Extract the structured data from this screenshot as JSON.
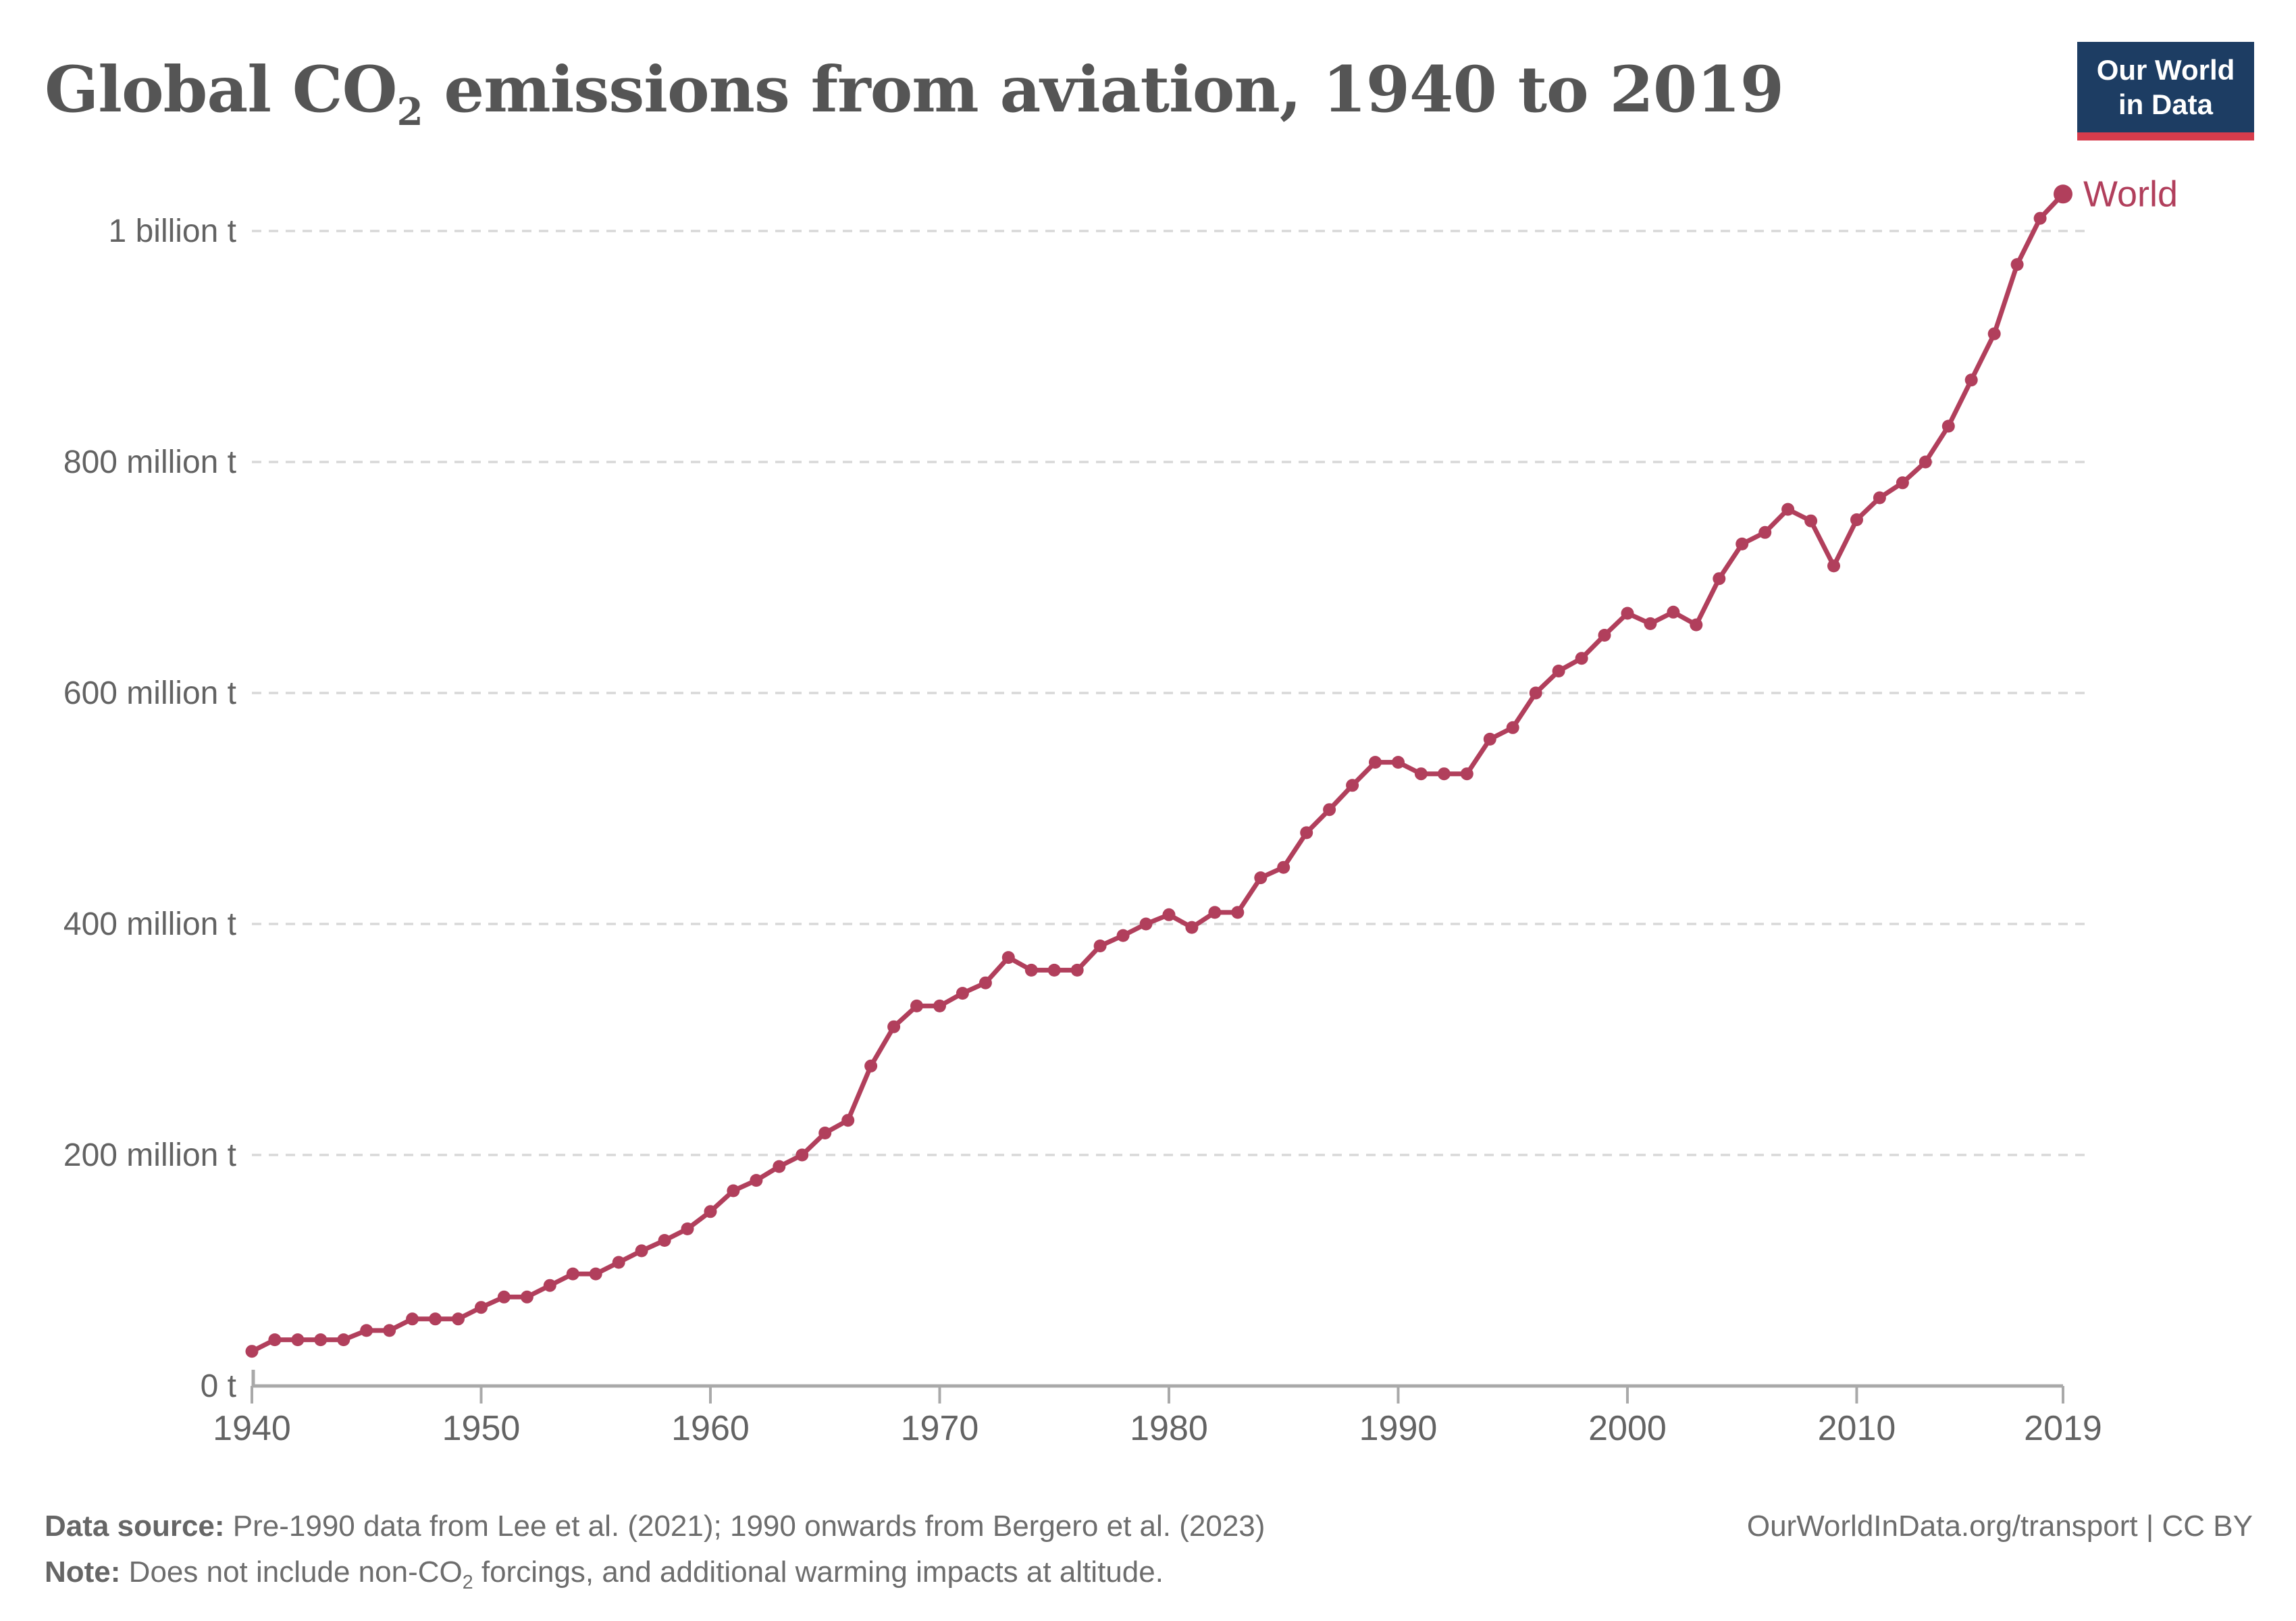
{
  "header": {
    "title_p1": "Global CO",
    "title_sub": "2",
    "title_p2": " emissions from aviation, 1940 to 2019",
    "logo_line1": "Our World",
    "logo_line2": "in Data",
    "logo_colors": {
      "background": "#1d3d63",
      "underline": "#d73c4c",
      "text": "#ffffff"
    }
  },
  "chart_data": {
    "type": "line",
    "title": "Global CO2 emissions from aviation, 1940 to 2019",
    "xlabel": "",
    "ylabel": "",
    "unit": "tonnes CO2",
    "grid": "horizontal-dashed",
    "legend_position": "end-of-line-label",
    "x_range": [
      1940,
      2019
    ],
    "y_range": [
      0,
      1050000000
    ],
    "yticks": [
      {
        "value": 0,
        "label": "0 t"
      },
      {
        "value": 200,
        "label": "200 million t"
      },
      {
        "value": 400,
        "label": "400 million t"
      },
      {
        "value": 600,
        "label": "600 million t"
      },
      {
        "value": 800,
        "label": "800 million t"
      },
      {
        "value": 1000,
        "label": "1 billion t"
      }
    ],
    "xticks": [
      {
        "year": 1940,
        "label": "1940"
      },
      {
        "year": 1950,
        "label": "1950"
      },
      {
        "year": 1960,
        "label": "1960"
      },
      {
        "year": 1970,
        "label": "1970"
      },
      {
        "year": 1980,
        "label": "1980"
      },
      {
        "year": 1990,
        "label": "1990"
      },
      {
        "year": 2000,
        "label": "2000"
      },
      {
        "year": 2010,
        "label": "2010"
      },
      {
        "year": 2019,
        "label": "2019"
      }
    ],
    "value_unit_of_series": "million tonnes",
    "series": [
      {
        "name": "World",
        "color": "#b13f5c",
        "x": [
          1940,
          1941,
          1942,
          1943,
          1944,
          1945,
          1946,
          1947,
          1948,
          1949,
          1950,
          1951,
          1952,
          1953,
          1954,
          1955,
          1956,
          1957,
          1958,
          1959,
          1960,
          1961,
          1962,
          1963,
          1964,
          1965,
          1966,
          1967,
          1968,
          1969,
          1970,
          1971,
          1972,
          1973,
          1974,
          1975,
          1976,
          1977,
          1978,
          1979,
          1980,
          1981,
          1982,
          1983,
          1984,
          1985,
          1986,
          1987,
          1988,
          1989,
          1990,
          1991,
          1992,
          1993,
          1994,
          1995,
          1996,
          1997,
          1998,
          1999,
          2000,
          2001,
          2002,
          2003,
          2004,
          2005,
          2006,
          2007,
          2008,
          2009,
          2010,
          2011,
          2012,
          2013,
          2014,
          2015,
          2016,
          2017,
          2018,
          2019
        ],
        "values": [
          30,
          40,
          40,
          40,
          40,
          48,
          48,
          58,
          58,
          58,
          68,
          77,
          77,
          87,
          97,
          97,
          107,
          117,
          126,
          136,
          151,
          169,
          178,
          190,
          200,
          219,
          230,
          277,
          311,
          329,
          329,
          340,
          349,
          371,
          360,
          360,
          360,
          381,
          390,
          400,
          408,
          397,
          410,
          410,
          440,
          449,
          479,
          499,
          520,
          540,
          540,
          530,
          530,
          530,
          560,
          570,
          600,
          619,
          630,
          650,
          669,
          660,
          670,
          659,
          699,
          729,
          739,
          759,
          749,
          710,
          750,
          769,
          782,
          800,
          831,
          871,
          911,
          971,
          1011,
          1032
        ]
      }
    ],
    "colors": {
      "line": "#b13f5c",
      "gridline": "#d8d8d8",
      "axis": "#a9a9a9",
      "tick_label": "#636363"
    }
  },
  "footer": {
    "source_label": "Data source:",
    "source_text": " Pre-1990 data from Lee et al. (2021); 1990 onwards from Bergero et al. (2023)",
    "right_link": "OurWorldInData.org/transport",
    "right_separator": " | ",
    "right_license": "CC BY",
    "note_label": "Note:",
    "note_p1": " Does not include non-CO",
    "note_sub": "2",
    "note_p2": " forcings, and additional warming impacts at altitude."
  }
}
